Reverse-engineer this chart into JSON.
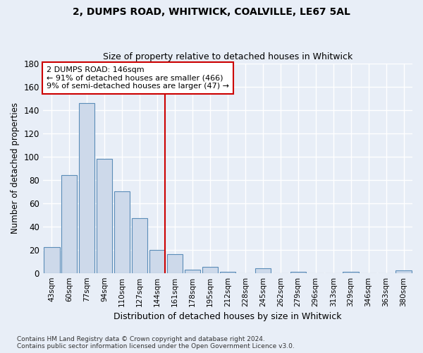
{
  "title1": "2, DUMPS ROAD, WHITWICK, COALVILLE, LE67 5AL",
  "title2": "Size of property relative to detached houses in Whitwick",
  "xlabel": "Distribution of detached houses by size in Whitwick",
  "ylabel": "Number of detached properties",
  "categories": [
    "43sqm",
    "60sqm",
    "77sqm",
    "94sqm",
    "110sqm",
    "127sqm",
    "144sqm",
    "161sqm",
    "178sqm",
    "195sqm",
    "212sqm",
    "228sqm",
    "245sqm",
    "262sqm",
    "279sqm",
    "296sqm",
    "313sqm",
    "329sqm",
    "346sqm",
    "363sqm",
    "380sqm"
  ],
  "values": [
    22,
    84,
    146,
    98,
    70,
    47,
    20,
    16,
    3,
    5,
    1,
    0,
    4,
    0,
    1,
    0,
    0,
    1,
    0,
    0,
    2
  ],
  "bar_color": "#cdd9ea",
  "bar_edge_color": "#5b8db8",
  "highlight_index": 6,
  "highlight_color": "#cc0000",
  "annotation_line1": "2 DUMPS ROAD: 146sqm",
  "annotation_line2": "← 91% of detached houses are smaller (466)",
  "annotation_line3": "9% of semi-detached houses are larger (47) →",
  "annotation_box_color": "#ffffff",
  "annotation_box_edge": "#cc0000",
  "ylim": [
    0,
    180
  ],
  "yticks": [
    0,
    20,
    40,
    60,
    80,
    100,
    120,
    140,
    160,
    180
  ],
  "footer_text": "Contains HM Land Registry data © Crown copyright and database right 2024.\nContains public sector information licensed under the Open Government Licence v3.0.",
  "bg_color": "#e8eef7",
  "grid_color": "#ffffff"
}
